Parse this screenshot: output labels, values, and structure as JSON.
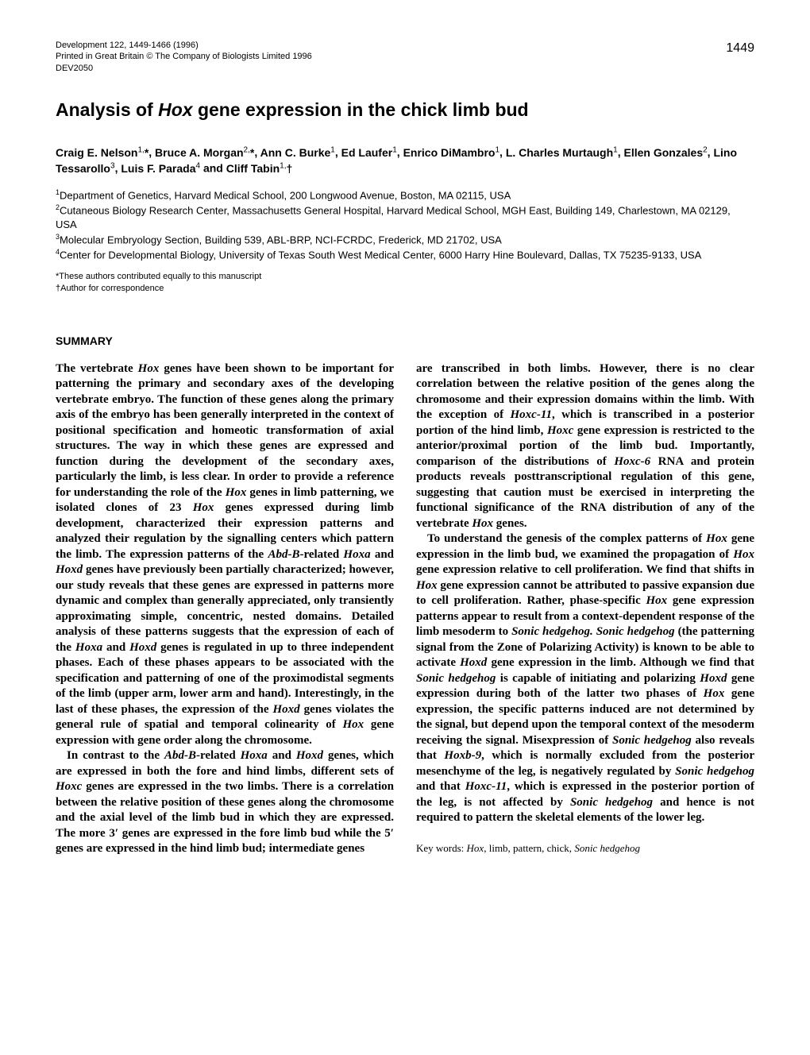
{
  "header": {
    "journal_line": "Development 122, 1449-1466 (1996)",
    "printed_line": "Printed in Great Britain © The Company of Biologists Limited 1996",
    "dev_id": "DEV2050",
    "page_number": "1449"
  },
  "title": {
    "pre": "Analysis of ",
    "ital": "Hox",
    "post": " gene expression in the chick limb bud"
  },
  "authors": {
    "a1": {
      "name": "Craig E. Nelson",
      "sup": "1,",
      "mark": "*"
    },
    "a2": {
      "name": "Bruce A. Morgan",
      "sup": "2,",
      "mark": "*"
    },
    "a3": {
      "name": "Ann C. Burke",
      "sup": "1"
    },
    "a4": {
      "name": "Ed Laufer",
      "sup": "1"
    },
    "a5": {
      "name": "Enrico DiMambro",
      "sup": "1"
    },
    "a6": {
      "name": "L. Charles Murtaugh",
      "sup": "1"
    },
    "a7": {
      "name": "Ellen Gonzales",
      "sup": "2"
    },
    "a8": {
      "name": "Lino Tessarollo",
      "sup": "3"
    },
    "a9": {
      "name": "Luis F. Parada",
      "sup": "4"
    },
    "a10": {
      "name": "Cliff Tabin",
      "sup": "1,",
      "mark": "†"
    }
  },
  "affiliations": {
    "aff1": {
      "sup": "1",
      "text": "Department of Genetics, Harvard Medical School, 200 Longwood Avenue, Boston, MA 02115, USA"
    },
    "aff2": {
      "sup": "2",
      "text": "Cutaneous Biology Research Center, Massachusetts General Hospital, Harvard Medical School, MGH East, Building 149, Charlestown, MA 02129, USA"
    },
    "aff3": {
      "sup": "3",
      "text": "Molecular Embryology Section, Building 539, ABL-BRP, NCI-FCRDC, Frederick, MD 21702, USA"
    },
    "aff4": {
      "sup": "4",
      "text": "Center for Developmental Biology, University of Texas South West Medical Center, 6000 Harry Hine Boulevard, Dallas, TX 75235-9133, USA"
    }
  },
  "footnotes": {
    "fn1": "*These authors contributed equally to this manuscript",
    "fn2": "†Author for correspondence"
  },
  "summary": {
    "heading": "SUMMARY",
    "left": {
      "p1a": "The vertebrate ",
      "p1b": "Hox",
      "p1c": " genes have been shown to be important for patterning the primary and secondary axes of the developing vertebrate embryo. The function of these genes along the primary axis of the embryo has been generally interpreted in the context of positional specification and homeotic transformation of axial structures. The way in which these genes are expressed and function during the development of the secondary axes, particularly the limb, is less clear. In order to provide a reference for understanding the role of the ",
      "p1d": "Hox",
      "p1e": " genes in limb patterning, we isolated clones of 23 ",
      "p1f": "Hox",
      "p1g": " genes expressed during limb development, characterized their expression patterns and analyzed their regulation by the signalling centers which pattern the limb. The expression patterns of the ",
      "p1h": "Abd-B",
      "p1i": "-related ",
      "p1j": "Hoxa",
      "p1k": " and ",
      "p1l": "Hoxd",
      "p1m": " genes have previously been partially characterized; however, our study reveals that these genes are expressed in patterns more dynamic and complex than generally appreciated, only transiently approximating simple, concentric, nested domains. Detailed analysis of these patterns suggests that the expression of each of the ",
      "p1n": "Hoxa",
      "p1o": " and ",
      "p1p": "Hoxd",
      "p1q": " genes is regulated in up to three independent phases. Each of these phases appears to be associated with the specification and patterning of one of the proximodistal segments of the limb (upper arm, lower arm and hand). Interestingly, in the last of these phases, the expression of the ",
      "p1r": "Hoxd",
      "p1s": " genes violates the general rule of spatial and temporal colinearity of ",
      "p1t": "Hox",
      "p1u": " gene expression with gene order along the chromosome.",
      "p2a": "In contrast to the ",
      "p2b": "Abd-B",
      "p2c": "-related ",
      "p2d": "Hoxa",
      "p2e": " and ",
      "p2f": "Hoxd",
      "p2g": " genes, which are expressed in both the fore and hind limbs, different sets of ",
      "p2h": "Hoxc",
      "p2i": " genes are expressed in the two limbs. There is a correlation between the relative position of these genes along the chromosome and the axial level of the limb bud in which they are expressed. The more 3′ genes are expressed in the fore limb bud while the 5′ genes are expressed in the hind limb bud; intermediate genes"
    },
    "right": {
      "p1a": "are transcribed in both limbs. However, there is no clear correlation between the relative position of the genes along the chromosome and their expression domains within the limb. With the exception of ",
      "p1b": "Hoxc-11",
      "p1c": ", which is transcribed in a posterior portion of the hind limb, ",
      "p1d": "Hoxc",
      "p1e": " gene expression is restricted to the anterior/proximal portion of the limb bud. Importantly, comparison of the distributions of ",
      "p1f": "Hoxc-6",
      "p1g": " RNA and protein products reveals posttranscriptional regulation of this gene, suggesting that caution must be exercised in interpreting the functional significance of the RNA distribution of any of the vertebrate ",
      "p1h": "Hox",
      "p1i": " genes.",
      "p2a": "To understand the genesis of the complex patterns of ",
      "p2b": "Hox",
      "p2c": " gene expression in the limb bud, we examined the propagation of ",
      "p2d": "Hox",
      "p2e": " gene expression relative to cell proliferation. We find that shifts in ",
      "p2f": "Hox",
      "p2g": " gene expression cannot be attributed to passive expansion due to cell proliferation. Rather, phase-specific ",
      "p2h": "Hox",
      "p2i": " gene expression patterns appear to result from a context-dependent response of the limb mesoderm to ",
      "p2j": "Sonic hedgehog. Sonic hedgehog",
      "p2k": " (the patterning signal from the Zone of Polarizing Activity) is known to be able to activate ",
      "p2l": "Hoxd",
      "p2m": " gene expression in the limb. Although we find that ",
      "p2n": "Sonic hedgehog",
      "p2o": " is capable of initiating and polarizing ",
      "p2p": "Hoxd",
      "p2q": " gene expression during both of the latter two phases of ",
      "p2r": "Hox",
      "p2s": " gene expression, the specific patterns induced are not determined by the signal, but depend upon the temporal context of the mesoderm receiving the signal. Misexpression of ",
      "p2t": "Sonic hedgehog",
      "p2u": " also reveals that ",
      "p2v": "Hoxb-9",
      "p2w": ", which is normally excluded from the posterior mesenchyme of the leg, is negatively regulated by ",
      "p2x": "Sonic hedgehog",
      "p2y": " and that ",
      "p2z": "Hoxc-11",
      "p2aa": ", which is expressed in the posterior portion of the leg, is not affected by ",
      "p2ab": "Sonic hedgehog",
      "p2ac": " and hence is not required to pattern the skeletal elements of the lower leg."
    },
    "keywords": {
      "pre": "Key words: ",
      "k1": "Hox",
      "mid1": ", limb, pattern, chick, ",
      "k2": "Sonic hedgehog"
    }
  }
}
